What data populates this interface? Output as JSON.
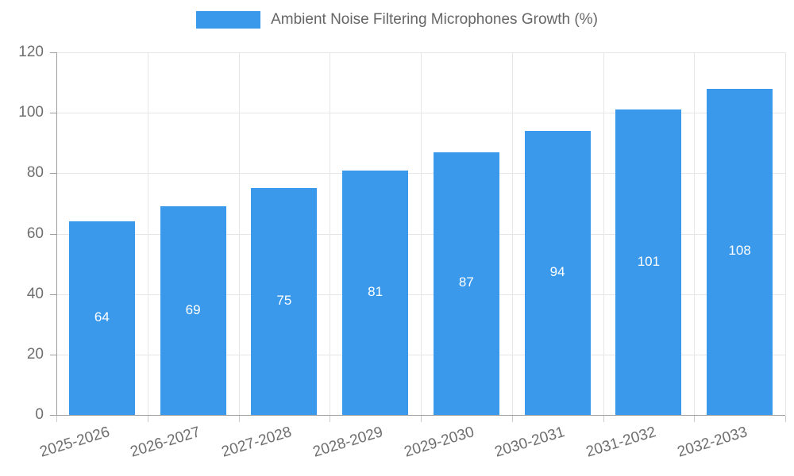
{
  "legend": {
    "label": "Ambient Noise Filtering Microphones Growth (%)"
  },
  "chart_data": {
    "type": "bar",
    "title": "Ambient Noise Filtering Microphones Growth (%)",
    "categories": [
      "2025-2026",
      "2026-2027",
      "2027-2028",
      "2028-2029",
      "2029-2030",
      "2030-2031",
      "2031-2032",
      "2032-2033"
    ],
    "values": [
      64,
      69,
      75,
      81,
      87,
      94,
      101,
      108
    ],
    "value_labels": [
      "64",
      "69",
      "75",
      "81",
      "87",
      "94",
      "101",
      "108"
    ],
    "xlabel": "",
    "ylabel": "",
    "ylim": [
      0,
      120
    ],
    "yticks": [
      0,
      20,
      40,
      60,
      80,
      100,
      120
    ],
    "grid": "on",
    "legend_position": "top-center",
    "colors": {
      "bar": "#3b99eb",
      "value_label": "#ffffff",
      "gridline": "#e6e6e6",
      "axis_line": "#9e9e9e",
      "x_tick_mark": "#cccccc",
      "tick_label": "#6e6e6e",
      "legend_text": "#666666",
      "background": "#ffffff"
    }
  }
}
